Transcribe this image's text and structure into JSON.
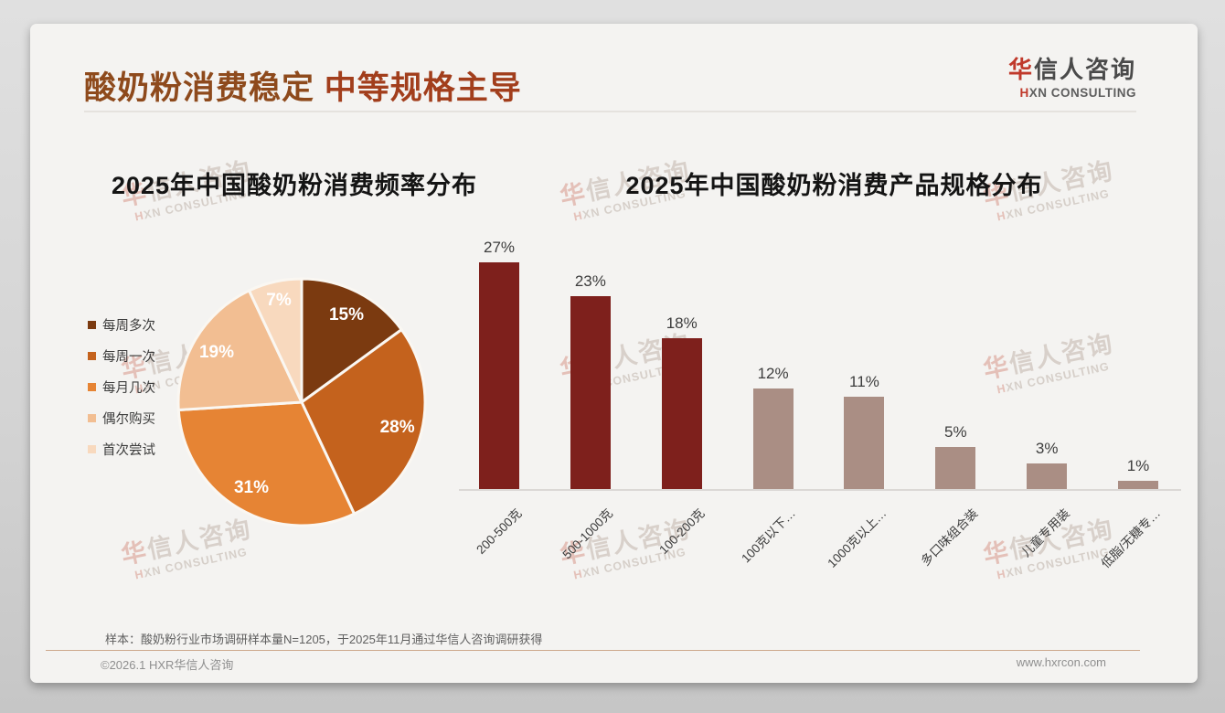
{
  "page": {
    "title_part1": "酸奶粉消费稳定",
    "title_part2": " 中等规格主导",
    "logo": {
      "zh_accent": "华",
      "zh_rest": "信人咨询",
      "en_accent": "H",
      "en_rest": "XN CONSULTING"
    },
    "watermark": {
      "line1_accent": "华",
      "line1_rest": "信人咨询",
      "line2_accent": "H",
      "line2_rest": "XN CONSULTING"
    },
    "footnote": "样本：酸奶粉行业市场调研样本量N=1205，于2025年11月通过华信人咨询调研获得",
    "footer_left": "©2026.1 HXR华信人咨询",
    "footer_right": "www.hxrcon.com"
  },
  "chart_data": [
    {
      "type": "pie",
      "title": "2025年中国酸奶粉消费频率分布",
      "labels": [
        "每周多次",
        "每周一次",
        "每月几次",
        "偶尔购买",
        "首次尝试"
      ],
      "values": [
        15,
        28,
        31,
        19,
        7
      ],
      "unit": "%",
      "colors": [
        "#7b3a10",
        "#c4621d",
        "#e68434",
        "#f2be92",
        "#f8d9be"
      ],
      "legend_position": "left",
      "label_style": "percent-inside-white",
      "start_angle_deg": 0,
      "direction": "clockwise"
    },
    {
      "type": "bar",
      "title": "2025年中国酸奶粉消费产品规格分布",
      "categories": [
        "200-500克",
        "500-1000克",
        "100-200克",
        "100克以下…",
        "1000克以上…",
        "多口味组合装",
        "儿童专用装",
        "低脂/无糖专…"
      ],
      "values": [
        27,
        23,
        18,
        12,
        11,
        5,
        3,
        1
      ],
      "unit": "%",
      "bar_colors": [
        "#7e201c",
        "#7e201c",
        "#7e201c",
        "#aa8e84",
        "#aa8e84",
        "#aa8e84",
        "#aa8e84",
        "#aa8e84"
      ],
      "ylim": [
        0,
        30
      ],
      "grid": false,
      "value_labels": true,
      "x_label_rotation_deg": 45
    }
  ]
}
